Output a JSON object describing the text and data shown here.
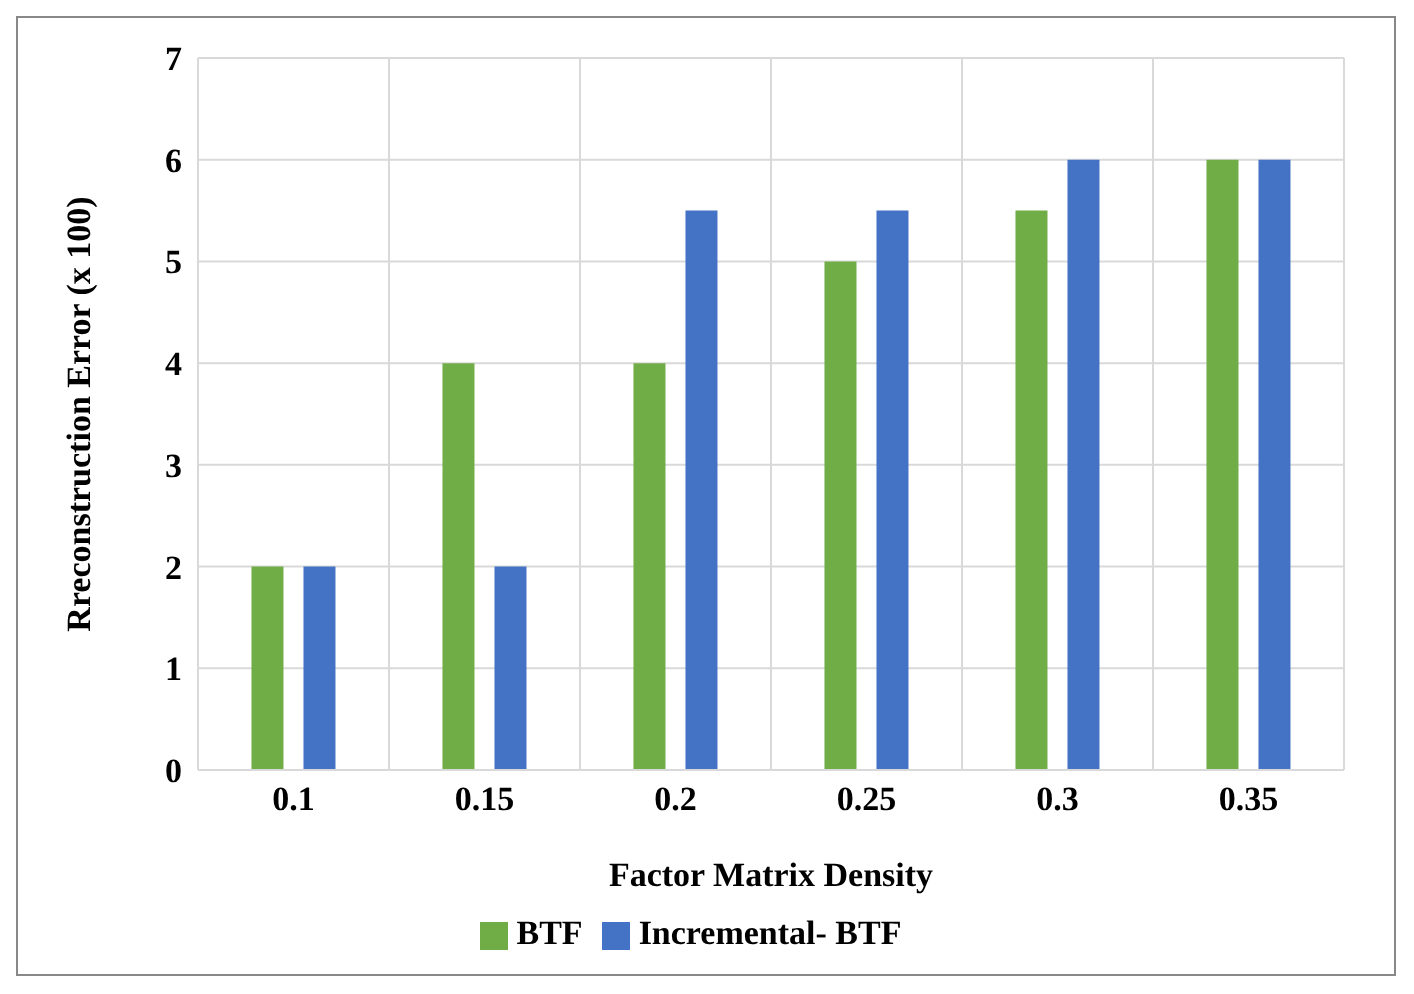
{
  "chart_data": {
    "type": "bar",
    "xlabel": "Factor Matrix Density",
    "ylabel": "Rreconstruction Error (x 100)",
    "categories": [
      "0.1",
      "0.15",
      "0.2",
      "0.25",
      "0.3",
      "0.35"
    ],
    "series": [
      {
        "name": "BTF",
        "color": "#70ad47",
        "values": [
          2,
          4,
          4,
          5,
          5.5,
          6
        ]
      },
      {
        "name": "Incremental- BTF",
        "color": "#4472c4",
        "values": [
          2,
          2,
          5.5,
          5.5,
          6,
          6
        ]
      }
    ],
    "ylim": [
      0,
      7
    ],
    "yticks": [
      0,
      1,
      2,
      3,
      4,
      5,
      6,
      7
    ],
    "grid": true,
    "legend": "bottom"
  }
}
